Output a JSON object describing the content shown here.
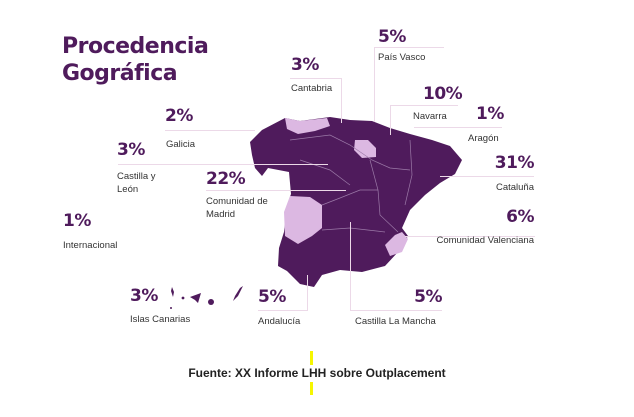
{
  "title_line1": "Procedencia",
  "title_line2": "Gográfica",
  "colors": {
    "primary": "#4f1b5c",
    "highlight": "#dcb8e2",
    "accent": "#f6f600"
  },
  "regions": [
    {
      "pct": "5%",
      "label": "País Vasco"
    },
    {
      "pct": "3%",
      "label": "Cantabria"
    },
    {
      "pct": "10%",
      "label": "Navarra"
    },
    {
      "pct": "1%",
      "label": "Aragón"
    },
    {
      "pct": "2%",
      "label": "Galicia"
    },
    {
      "pct": "3%",
      "label": "Castilla y León"
    },
    {
      "pct": "22%",
      "label": "Comunidad de Madrid"
    },
    {
      "pct": "31%",
      "label": "Cataluña"
    },
    {
      "pct": "1%",
      "label": "Internacional"
    },
    {
      "pct": "6%",
      "label": "Comunidad Valenciana"
    },
    {
      "pct": "3%",
      "label": "Islas Canarias"
    },
    {
      "pct": "5%",
      "label": "Andalucía"
    },
    {
      "pct": "5%",
      "label": "Castilla La Mancha"
    }
  ],
  "source": "Fuente: XX Informe LHH sobre Outplacement"
}
